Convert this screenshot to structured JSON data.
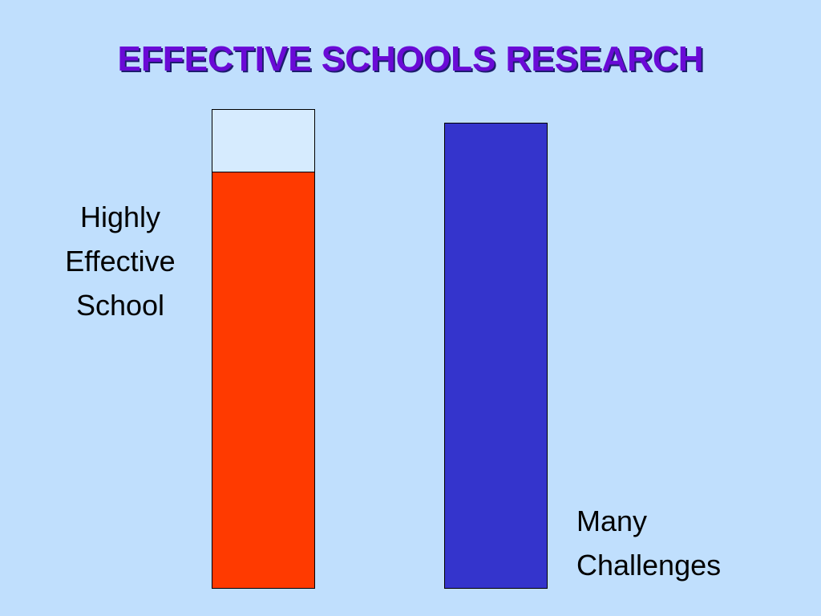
{
  "slide": {
    "title": "EFFECTIVE SCHOOLS RESEARCH"
  },
  "chart_data": {
    "type": "bar",
    "categories": [
      "Highly Effective School",
      "Many Challenges"
    ],
    "values": [
      0.87,
      1.0
    ],
    "value_unit": "fraction of bar filled",
    "category_label_lines": [
      [
        "Highly",
        "Effective",
        "School"
      ],
      [
        "Many",
        "Challenges"
      ]
    ],
    "grid": false,
    "legend": "none"
  },
  "colors": {
    "background": "#c0dffd",
    "title": "#6a0ad6",
    "bar_highly_effective": "#ff3a00",
    "bar_many_challenges": "#3434cc"
  }
}
